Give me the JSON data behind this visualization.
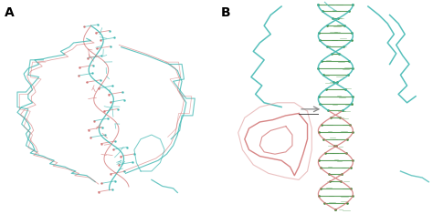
{
  "panel_A_label": "A",
  "panel_B_label": "B",
  "label_fontsize": 10,
  "background_color": "#ffffff",
  "fig_width": 4.74,
  "fig_height": 2.35,
  "dpi": 100,
  "colors": {
    "teal": "#3ab5b0",
    "salmon": "#d07070",
    "salmon_light": "#e0a0a0",
    "green": "#3a8a3a",
    "dark": "#222222",
    "gray": "#888888"
  }
}
